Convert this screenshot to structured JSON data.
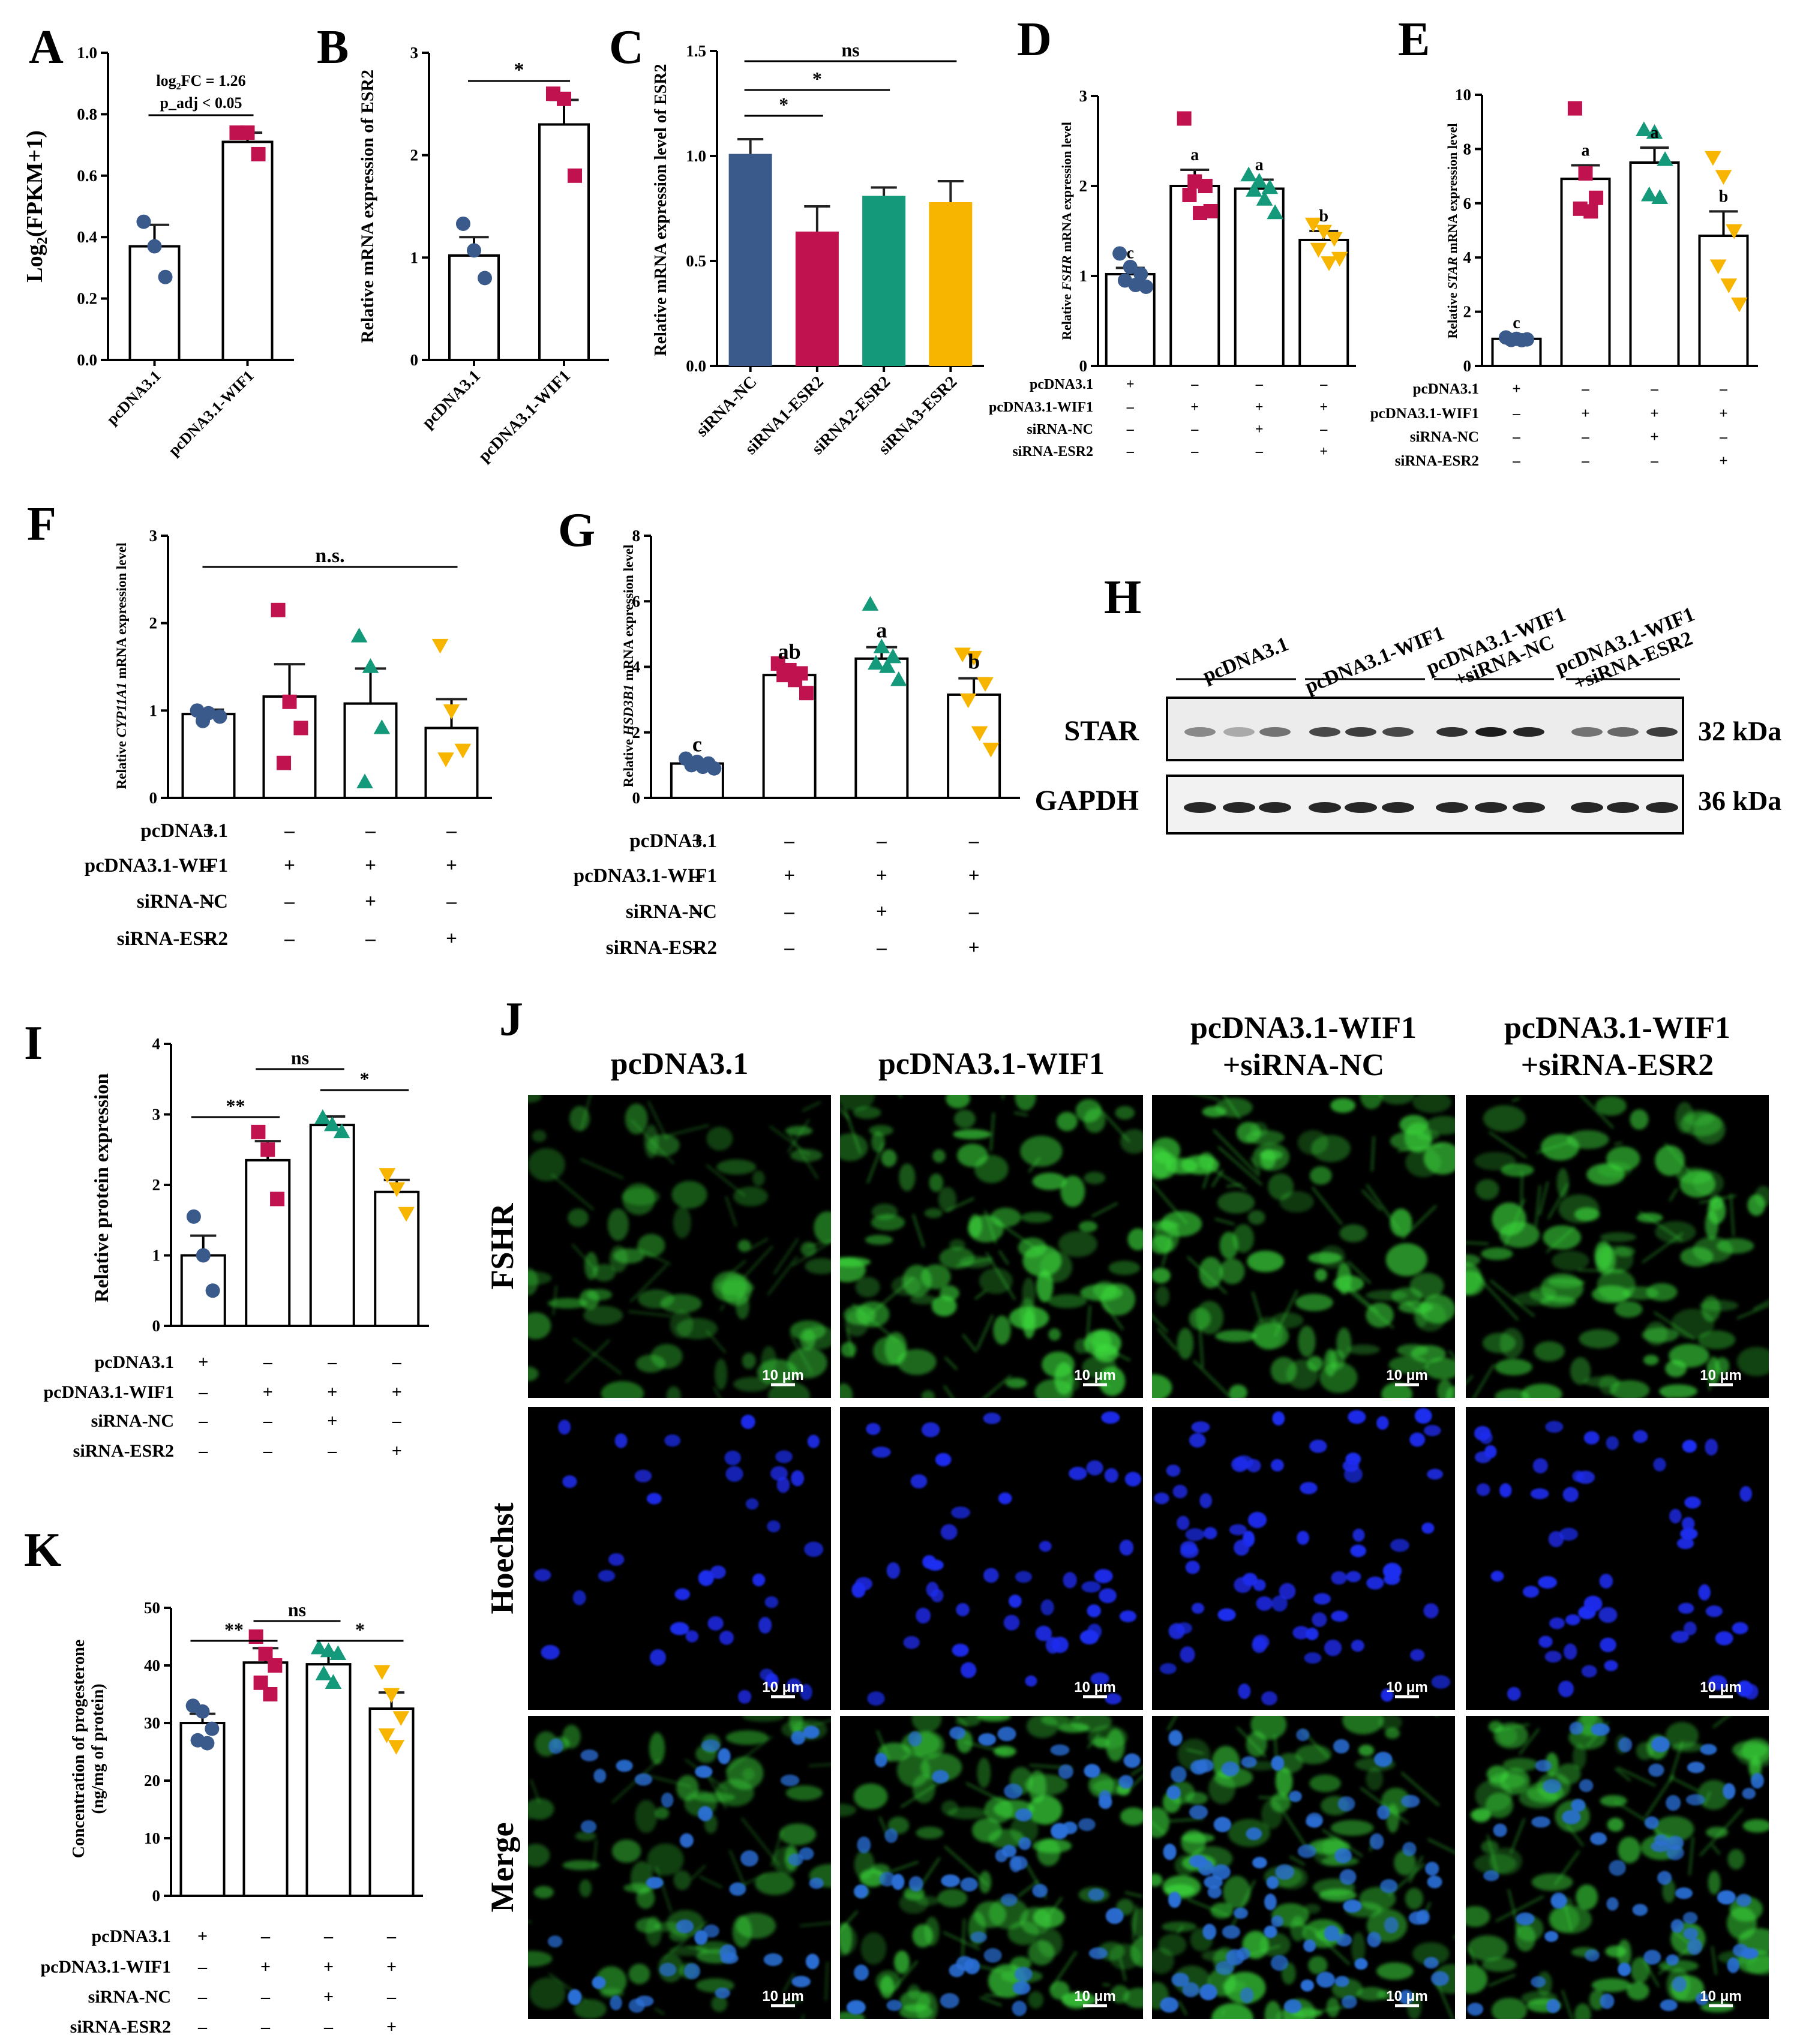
{
  "colors": {
    "blue": "#3b5a8c",
    "crimson": "#c0124f",
    "green": "#14997a",
    "yellow": "#f7b500",
    "fsh_green": "#3ddc3d",
    "nucleus_blue": "#1e2df0"
  },
  "shared": {
    "row_labels": [
      "pcDNA3.1",
      "pcDNA3.1-WIF1",
      "siRNA-NC",
      "siRNA-ESR2"
    ]
  },
  "panels": {
    "H": {
      "label": "H",
      "groups": [
        "pcDNA3.1",
        "pcDNA3.1-WIF1",
        "pcDNA3.1-WIF1\n+siRNA-NC",
        "pcDNA3.1-WIF1\n+siRNA-ESR2"
      ],
      "bands": [
        {
          "protein": "STAR",
          "size": "32 kDa"
        },
        {
          "protein": "GAPDH",
          "size": "36 kDa"
        }
      ]
    },
    "J": {
      "label": "J",
      "columns": [
        "pcDNA3.1",
        "pcDNA3.1-WIF1",
        "pcDNA3.1-WIF1\n+siRNA-NC",
        "pcDNA3.1-WIF1\n+siRNA-ESR2"
      ],
      "rows": [
        "FSHR",
        "Hoechst",
        "Merge"
      ],
      "scalebar": "10 μm"
    }
  },
  "chart_data": [
    {
      "id": "A",
      "label": "A",
      "type": "bar",
      "categories": [
        "pcDNA3.1",
        "pcDNA3.1-WIF1"
      ],
      "values": [
        0.37,
        0.71
      ],
      "errors": [
        0.07,
        0.03
      ],
      "points": [
        [
          0.45,
          0.37,
          0.27
        ],
        [
          0.74,
          0.74,
          0.67
        ]
      ],
      "ylabel": "Log2(FPKM+1)",
      "ylabel_main": "Log",
      "ylabel_sub": "2",
      "ylabel_rest": "(FPKM+1)",
      "ylim": [
        0,
        1.0
      ],
      "yticks": [
        "0.0",
        "0.2",
        "0.4",
        "0.6",
        "0.8",
        "1.0"
      ],
      "annotation": [
        "log2FC = 1.26",
        "p_adj < 0.05"
      ],
      "annot_main": "log",
      "annot_sub": "2",
      "annot_rest": "FC = 1.26",
      "annot_line2": "p_adj < 0.05",
      "colors": [
        "blue",
        "crimson"
      ],
      "fill": "hollow"
    },
    {
      "id": "B",
      "label": "B",
      "type": "bar",
      "categories": [
        "pcDNA3.1",
        "pcDNA3.1-WIF1"
      ],
      "values": [
        1.02,
        2.3
      ],
      "errors": [
        0.18,
        0.24
      ],
      "points": [
        [
          1.33,
          1.07,
          0.8
        ],
        [
          2.6,
          2.55,
          1.8
        ]
      ],
      "ylabel": "Relative mRNA expression of ESR2",
      "ylim": [
        0,
        3
      ],
      "yticks": [
        "0",
        "1",
        "2",
        "3"
      ],
      "sig": [
        {
          "from": 0,
          "to": 1,
          "text": "*"
        }
      ],
      "colors": [
        "blue",
        "crimson"
      ],
      "fill": "hollow"
    },
    {
      "id": "C",
      "label": "C",
      "type": "bar",
      "categories": [
        "siRNA-NC",
        "siRNA1-ESR2",
        "siRNA2-ESR2",
        "siRNA3-ESR2"
      ],
      "values": [
        1.01,
        0.64,
        0.81,
        0.78
      ],
      "errors": [
        0.07,
        0.12,
        0.04,
        0.1
      ],
      "ylabel": "Relative mRNA expression level of ESR2",
      "ylim": [
        0,
        1.5
      ],
      "yticks": [
        "0.0",
        "0.5",
        "1.0",
        "1.5"
      ],
      "sig": [
        {
          "from": 0,
          "to": 3,
          "text": "ns"
        },
        {
          "from": 0,
          "to": 2,
          "text": "*"
        },
        {
          "from": 0,
          "to": 1,
          "text": "*"
        }
      ],
      "colors": [
        "blue",
        "crimson",
        "green",
        "yellow"
      ],
      "fill": "solid"
    },
    {
      "id": "D",
      "label": "D",
      "type": "bar",
      "categories": [
        "1",
        "2",
        "3",
        "4"
      ],
      "values": [
        1.02,
        2.0,
        1.97,
        1.4
      ],
      "errors": [
        0.07,
        0.18,
        0.1,
        0.1
      ],
      "points": [
        [
          1.25,
          1.1,
          1.02,
          0.95,
          0.9,
          0.88
        ],
        [
          2.75,
          2.05,
          2.0,
          1.9,
          1.7,
          1.72
        ],
        [
          2.12,
          2.05,
          1.98,
          1.95,
          1.85,
          1.7
        ],
        [
          1.58,
          1.5,
          1.42,
          1.3,
          1.15,
          1.2
        ]
      ],
      "letters": [
        "c",
        "a",
        "a",
        "b"
      ],
      "ylabel": "Relative FSHR mRNA expression level",
      "ylabel_pre": "Relative ",
      "ylabel_gene": "FSHR",
      "ylabel_post": " mRNA expression level",
      "ylim": [
        0,
        3
      ],
      "yticks": [
        "0",
        "1",
        "2",
        "3"
      ],
      "matrix": [
        [
          "+",
          "–",
          "–",
          "–"
        ],
        [
          "–",
          "+",
          "+",
          "+"
        ],
        [
          "–",
          "–",
          "+",
          "–"
        ],
        [
          "–",
          "–",
          "–",
          "+"
        ]
      ],
      "colors": [
        "blue",
        "crimson",
        "green",
        "yellow"
      ],
      "fill": "hollow"
    },
    {
      "id": "E",
      "label": "E",
      "type": "bar",
      "categories": [
        "1",
        "2",
        "3",
        "4"
      ],
      "values": [
        1.0,
        6.9,
        7.5,
        4.8
      ],
      "errors": [
        0.04,
        0.5,
        0.55,
        0.9
      ],
      "points": [
        [
          1.05,
          1.0,
          0.98,
          0.96,
          0.95
        ],
        [
          9.5,
          7.1,
          6.2,
          5.8,
          5.7
        ],
        [
          8.7,
          8.6,
          7.6,
          6.3,
          6.2
        ],
        [
          7.7,
          7.0,
          5.0,
          3.7,
          3.0,
          2.3
        ]
      ],
      "letters": [
        "c",
        "a",
        "a",
        "b"
      ],
      "ylabel": "Relative STAR mRNA expression level",
      "ylabel_pre": "Relative ",
      "ylabel_gene": "STAR",
      "ylabel_post": " mRNA expression level",
      "ylim": [
        0,
        10
      ],
      "yticks": [
        "0",
        "2",
        "4",
        "6",
        "8",
        "10"
      ],
      "matrix": [
        [
          "+",
          "–",
          "–",
          "–"
        ],
        [
          "–",
          "+",
          "+",
          "+"
        ],
        [
          "–",
          "–",
          "+",
          "–"
        ],
        [
          "–",
          "–",
          "–",
          "+"
        ]
      ],
      "colors": [
        "blue",
        "crimson",
        "green",
        "yellow"
      ],
      "fill": "hollow"
    },
    {
      "id": "F",
      "label": "F",
      "type": "bar",
      "categories": [
        "1",
        "2",
        "3",
        "4"
      ],
      "values": [
        0.96,
        1.16,
        1.08,
        0.8
      ],
      "errors": [
        0.05,
        0.37,
        0.4,
        0.33
      ],
      "points": [
        [
          1.0,
          0.97,
          0.93,
          0.88
        ],
        [
          2.15,
          1.1,
          0.8,
          0.4
        ],
        [
          1.85,
          1.5,
          0.8,
          0.18
        ],
        [
          1.75,
          1.0,
          0.55,
          0.45
        ]
      ],
      "ylabel": "Relative CYP11A1 mRNA expression level",
      "ylabel_pre": "Relative ",
      "ylabel_gene": "CYP11A1",
      "ylabel_post": " mRNA expression level",
      "ylim": [
        0,
        3
      ],
      "yticks": [
        "0",
        "1",
        "2",
        "3"
      ],
      "sig": [
        {
          "from": 0,
          "to": 3,
          "text": "n.s."
        }
      ],
      "matrix": [
        [
          "+",
          "–",
          "–",
          "–"
        ],
        [
          "–",
          "+",
          "+",
          "+"
        ],
        [
          "–",
          "–",
          "+",
          "–"
        ],
        [
          "–",
          "–",
          "–",
          "+"
        ]
      ],
      "colors": [
        "blue",
        "crimson",
        "green",
        "yellow"
      ],
      "fill": "hollow"
    },
    {
      "id": "G",
      "label": "G",
      "type": "bar",
      "categories": [
        "1",
        "2",
        "3",
        "4"
      ],
      "values": [
        1.05,
        3.75,
        4.25,
        3.15
      ],
      "errors": [
        0.08,
        0.2,
        0.35,
        0.5
      ],
      "points": [
        [
          1.2,
          1.1,
          1.05,
          1.0,
          0.95,
          0.9
        ],
        [
          4.1,
          3.9,
          3.8,
          3.75,
          3.6,
          3.2
        ],
        [
          5.9,
          4.6,
          4.3,
          4.1,
          4.0,
          3.6
        ],
        [
          4.4,
          4.3,
          3.5,
          3.0,
          2.0,
          1.5
        ]
      ],
      "letters": [
        "c",
        "ab",
        "a",
        "b"
      ],
      "ylabel": "Relative HSD3B1 mRNA expression level",
      "ylabel_pre": "Relative ",
      "ylabel_gene": "HSD3B1",
      "ylabel_post": " mRNA expression level",
      "ylim": [
        0,
        8
      ],
      "yticks": [
        "0",
        "2",
        "4",
        "6",
        "8"
      ],
      "matrix": [
        [
          "+",
          "–",
          "–",
          "–"
        ],
        [
          "–",
          "+",
          "+",
          "+"
        ],
        [
          "–",
          "–",
          "+",
          "–"
        ],
        [
          "–",
          "–",
          "–",
          "+"
        ]
      ],
      "colors": [
        "blue",
        "crimson",
        "green",
        "yellow"
      ],
      "fill": "hollow"
    },
    {
      "id": "I",
      "label": "I",
      "type": "bar",
      "categories": [
        "1",
        "2",
        "3",
        "4"
      ],
      "values": [
        1.0,
        2.35,
        2.85,
        1.9
      ],
      "errors": [
        0.28,
        0.27,
        0.12,
        0.17
      ],
      "points": [
        [
          1.55,
          1.0,
          0.5
        ],
        [
          2.75,
          2.5,
          1.8
        ],
        [
          2.95,
          2.85,
          2.75
        ],
        [
          2.15,
          1.95,
          1.6
        ]
      ],
      "ylabel": "Relative protein expression",
      "ylim": [
        0,
        4
      ],
      "yticks": [
        "0",
        "1",
        "2",
        "3",
        "4"
      ],
      "sig": [
        {
          "from": 0,
          "to": 1,
          "text": "**"
        },
        {
          "from": 1,
          "to": 2,
          "text": "ns"
        },
        {
          "from": 2,
          "to": 3,
          "text": "*"
        }
      ],
      "matrix": [
        [
          "+",
          "–",
          "–",
          "–"
        ],
        [
          "–",
          "+",
          "+",
          "+"
        ],
        [
          "–",
          "–",
          "+",
          "–"
        ],
        [
          "–",
          "–",
          "–",
          "+"
        ]
      ],
      "colors": [
        "blue",
        "crimson",
        "green",
        "yellow"
      ],
      "fill": "hollow"
    },
    {
      "id": "K",
      "label": "K",
      "type": "bar",
      "categories": [
        "1",
        "2",
        "3",
        "4"
      ],
      "values": [
        30,
        40.5,
        40.2,
        32.5
      ],
      "errors": [
        1.6,
        2.5,
        2.0,
        2.8
      ],
      "points": [
        [
          33,
          32,
          29,
          27,
          26.5
        ],
        [
          45,
          42,
          40,
          37,
          35
        ],
        [
          43,
          42.5,
          42,
          38.5,
          37
        ],
        [
          39,
          35,
          31,
          28,
          26
        ]
      ],
      "ylabel": "Concentration of progesterone (ng/mg of protein)",
      "ylabel_l1": "Concentration of progesterone",
      "ylabel_l2": "(ng/mg of protein)",
      "ylim": [
        0,
        50
      ],
      "yticks": [
        "0",
        "10",
        "20",
        "30",
        "40",
        "50"
      ],
      "sig": [
        {
          "from": 0,
          "to": 1,
          "text": "**"
        },
        {
          "from": 1,
          "to": 2,
          "text": "ns"
        },
        {
          "from": 2,
          "to": 3,
          "text": "*"
        }
      ],
      "matrix": [
        [
          "+",
          "–",
          "–",
          "–"
        ],
        [
          "–",
          "+",
          "+",
          "+"
        ],
        [
          "–",
          "–",
          "+",
          "–"
        ],
        [
          "–",
          "–",
          "–",
          "+"
        ]
      ],
      "colors": [
        "blue",
        "crimson",
        "green",
        "yellow"
      ],
      "fill": "hollow"
    }
  ]
}
